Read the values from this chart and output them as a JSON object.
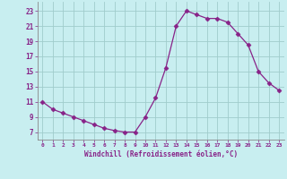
{
  "x": [
    0,
    1,
    2,
    3,
    4,
    5,
    6,
    7,
    8,
    9,
    10,
    11,
    12,
    13,
    14,
    15,
    16,
    17,
    18,
    19,
    20,
    21,
    22,
    23
  ],
  "y": [
    11,
    10,
    9.5,
    9,
    8.5,
    8,
    7.5,
    7.2,
    7,
    7,
    9,
    11.5,
    15.5,
    21,
    23,
    22.5,
    22,
    22,
    21.5,
    20,
    18.5,
    15,
    13.5,
    12.5
  ],
  "line_color": "#882288",
  "marker": "D",
  "marker_size": 2.5,
  "bg_color": "#c8eef0",
  "grid_color": "#a0cccc",
  "xlabel": "Windchill (Refroidissement éolien,°C)",
  "xlabel_color": "#882288",
  "tick_color": "#882288",
  "ytick_values": [
    7,
    9,
    11,
    13,
    15,
    17,
    19,
    21,
    23
  ],
  "ylim": [
    6.0,
    24.2
  ],
  "xlim": [
    -0.5,
    23.5
  ],
  "axis_color": "#888888"
}
